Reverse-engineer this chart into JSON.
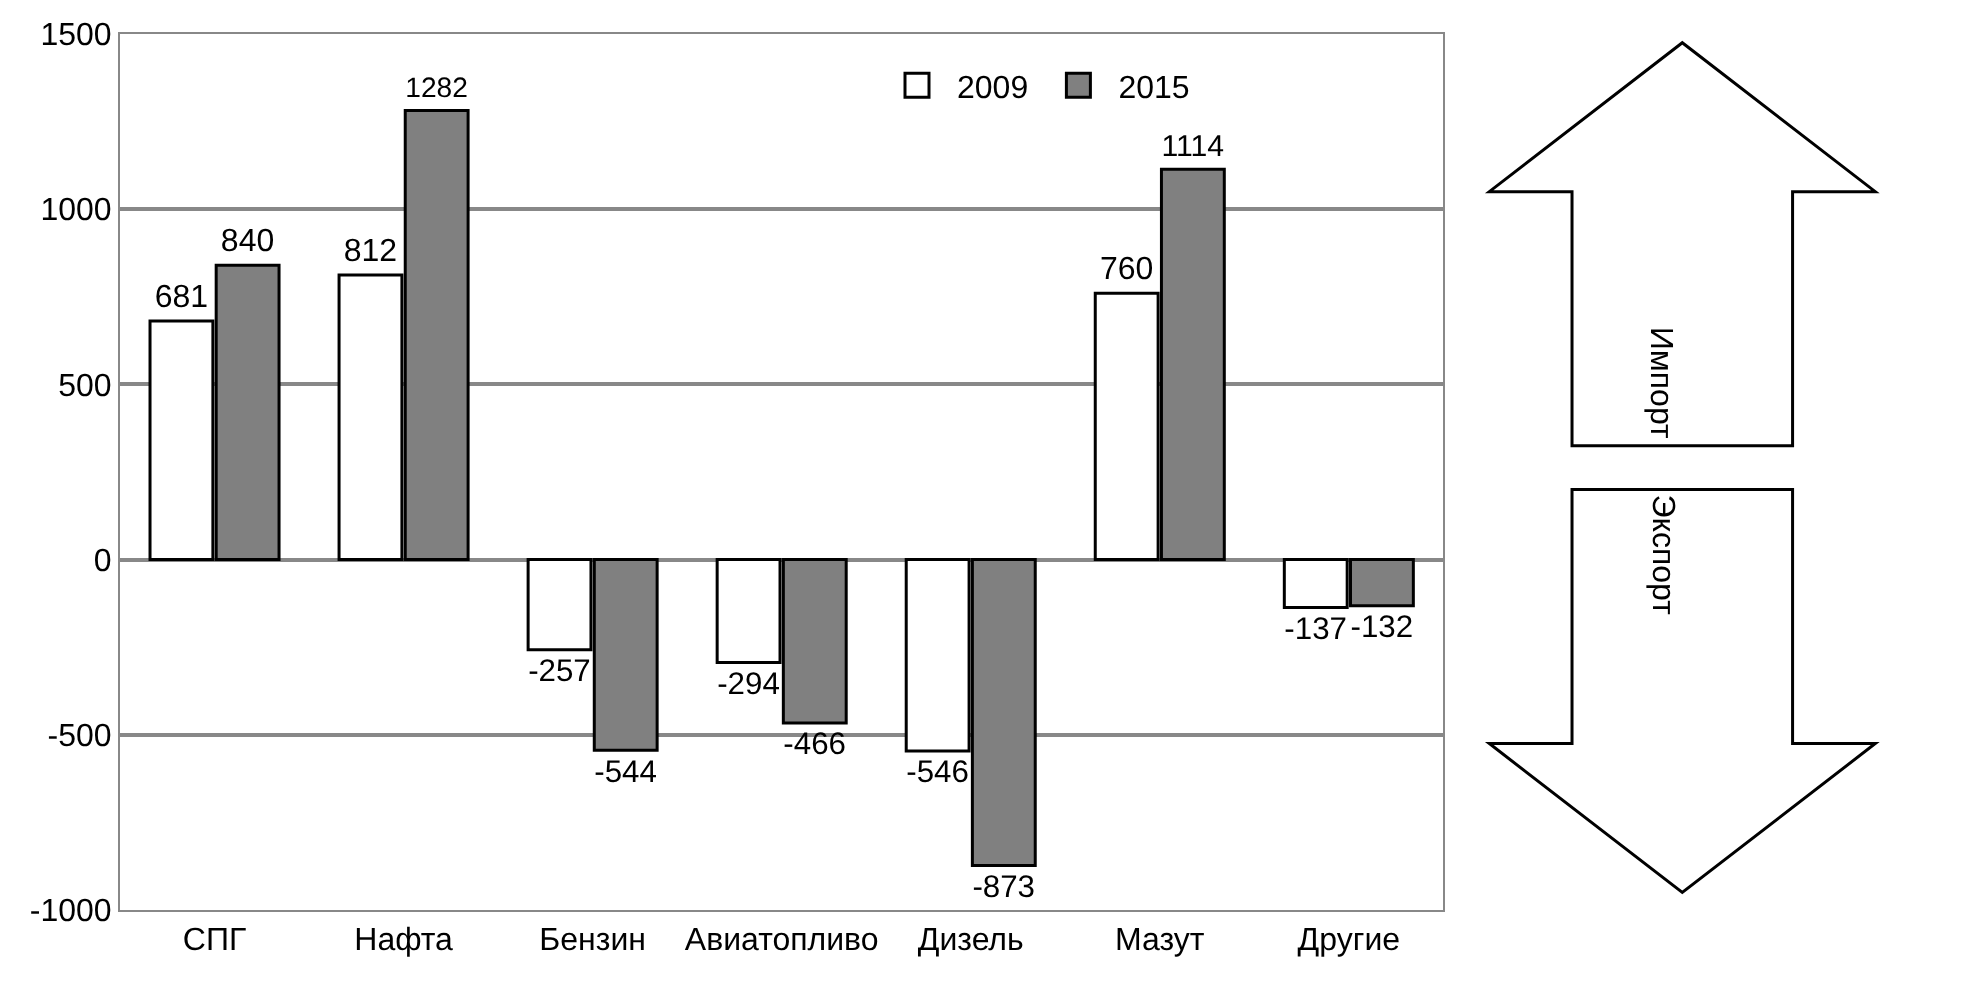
{
  "chart_data": {
    "type": "bar",
    "categories": [
      "СПГ",
      "Нафта",
      "Бензин",
      "Авиатопливо",
      "Дизель",
      "Мазут",
      "Другие"
    ],
    "series": [
      {
        "name": "2009",
        "color": "#ffffff",
        "values": [
          681,
          812,
          -257,
          -294,
          -546,
          760,
          -137
        ]
      },
      {
        "name": "2015",
        "color": "#808080",
        "values": [
          840,
          1282,
          -544,
          -466,
          -873,
          1114,
          -132
        ]
      }
    ],
    "ylim": [
      -1000,
      1500
    ],
    "yticks": [
      -1000,
      -500,
      0,
      500,
      1000,
      1500
    ],
    "grid": "y",
    "legend": "top",
    "data_labels": true,
    "annotations": [
      "Импорт",
      "Экспорт"
    ]
  }
}
